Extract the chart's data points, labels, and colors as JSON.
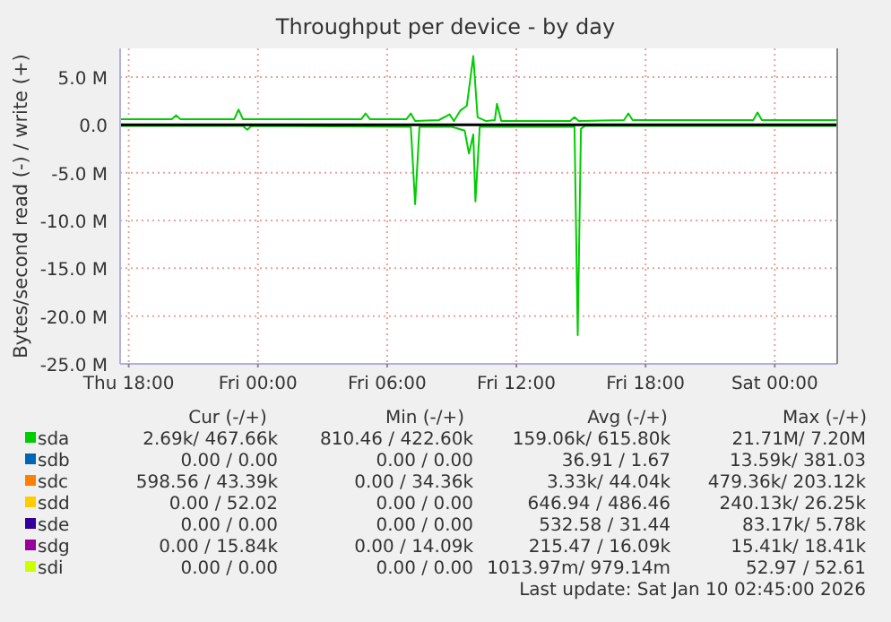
{
  "chart_data": {
    "type": "line",
    "title": "Throughput per device - by day",
    "ylabel": "Bytes/second read (-) / write (+)",
    "xlim": [
      "2026-01-08T17:36",
      "2026-01-10T02:54"
    ],
    "xticks": [
      {
        "value": "2026-01-08T18:00",
        "label": "Thu 18:00"
      },
      {
        "value": "2026-01-09T00:00",
        "label": "Fri 00:00"
      },
      {
        "value": "2026-01-09T06:00",
        "label": "Fri 06:00"
      },
      {
        "value": "2026-01-09T12:00",
        "label": "Fri 12:00"
      },
      {
        "value": "2026-01-09T18:00",
        "label": "Fri 18:00"
      },
      {
        "value": "2026-01-10T00:00",
        "label": "Sat 00:00"
      }
    ],
    "ylim": [
      -25,
      8
    ],
    "yticks": [
      {
        "value": -25,
        "label": "-25.0 M"
      },
      {
        "value": -20,
        "label": "-20.0 M"
      },
      {
        "value": -15,
        "label": "-15.0 M"
      },
      {
        "value": -10,
        "label": "-10.0 M"
      },
      {
        "value": -5,
        "label": "-5.0 M"
      },
      {
        "value": 0,
        "label": "0.0"
      },
      {
        "value": 5,
        "label": "5.0 M"
      }
    ],
    "grid": true,
    "legend": "bottom",
    "line_style": "solid",
    "marker": "none",
    "ref_lines": [
      {
        "axis": "y",
        "value": 0,
        "color": "#000000"
      }
    ],
    "series": [
      {
        "name": "sda",
        "color": "#00cc00",
        "x": [
          "2026-01-08T17:36",
          "2026-01-08T20:00",
          "2026-01-08T20:12",
          "2026-01-08T20:24",
          "2026-01-08T22:54",
          "2026-01-08T23:06",
          "2026-01-08T23:18",
          "2026-01-09T04:48",
          "2026-01-09T05:00",
          "2026-01-09T05:12",
          "2026-01-09T06:54",
          "2026-01-09T07:06",
          "2026-01-09T07:18",
          "2026-01-09T08:24",
          "2026-01-09T08:54",
          "2026-01-09T09:06",
          "2026-01-09T09:24",
          "2026-01-09T09:42",
          "2026-01-09T10:00",
          "2026-01-09T10:12",
          "2026-01-09T10:36",
          "2026-01-09T11:00",
          "2026-01-09T11:06",
          "2026-01-09T11:18",
          "2026-01-09T14:30",
          "2026-01-09T14:42",
          "2026-01-09T14:54",
          "2026-01-09T17:00",
          "2026-01-09T17:12",
          "2026-01-09T17:24",
          "2026-01-09T23:00",
          "2026-01-09T23:12",
          "2026-01-09T23:24",
          "2026-01-10T02:54"
        ],
        "values": [
          0.6,
          0.6,
          1.0,
          0.6,
          0.6,
          1.6,
          0.6,
          0.6,
          1.2,
          0.6,
          0.6,
          1.2,
          0.4,
          0.5,
          1.1,
          0.4,
          1.5,
          2.0,
          7.2,
          0.8,
          0.4,
          0.5,
          2.2,
          0.4,
          0.4,
          0.8,
          0.4,
          0.5,
          1.2,
          0.5,
          0.5,
          1.3,
          0.5,
          0.5
        ]
      },
      {
        "color": "#00cc00",
        "x": [
          "2026-01-08T17:36",
          "2026-01-08T23:18",
          "2026-01-08T23:30",
          "2026-01-08T23:42",
          "2026-01-09T07:06",
          "2026-01-09T07:18",
          "2026-01-09T07:30",
          "2026-01-09T09:00",
          "2026-01-09T09:36",
          "2026-01-09T09:48",
          "2026-01-09T10:00",
          "2026-01-09T10:06",
          "2026-01-09T10:18",
          "2026-01-09T14:42",
          "2026-01-09T14:51",
          "2026-01-09T15:00",
          "2026-01-09T15:12",
          "2026-01-10T02:54"
        ],
        "values": [
          -0.1,
          -0.1,
          -0.5,
          -0.1,
          -0.2,
          -8.3,
          -0.2,
          -0.2,
          -0.6,
          -3.0,
          -1.0,
          -8.0,
          -0.2,
          -0.2,
          -22.0,
          -0.4,
          -0.1,
          -0.1
        ]
      },
      {
        "name": "sdb",
        "color": "#0066b3"
      },
      {
        "name": "sdc",
        "color": "#ff8000"
      },
      {
        "name": "sdd",
        "color": "#ffcc00"
      },
      {
        "name": "sde",
        "color": "#330099"
      },
      {
        "name": "sdg",
        "color": "#990099"
      },
      {
        "name": "sdi",
        "color": "#ccff00"
      }
    ],
    "annotations": [
      "Cur (-/+)",
      "Min (-/+)",
      "Avg (-/+)",
      "Max (-/+)",
      "2.69k/ 467.66k",
      "810.46 / 422.60k",
      "159.06k/ 615.80k",
      "21.71M/ 7.20M",
      "0.00 / 0.00",
      "0.00 / 0.00",
      "36.91 / 1.67",
      "13.59k/ 381.03",
      "598.56 / 43.39k",
      "0.00 / 34.36k",
      "3.33k/ 44.04k",
      "479.36k/ 203.12k",
      "0.00 / 52.02",
      "0.00 / 0.00",
      "646.94 / 486.46",
      "240.13k/ 26.25k",
      "0.00 / 0.00",
      "0.00 / 0.00",
      "532.58 / 31.44",
      "83.17k/ 5.78k",
      "0.00 / 15.84k",
      "0.00 / 14.09k",
      "215.47 / 16.09k",
      "15.41k/ 18.41k",
      "0.00 / 0.00",
      "0.00 / 0.00",
      "1013.97m/ 979.14m",
      "52.97 / 52.61",
      "Last update: Sat Jan 10 02:45:00 2026"
    ]
  }
}
